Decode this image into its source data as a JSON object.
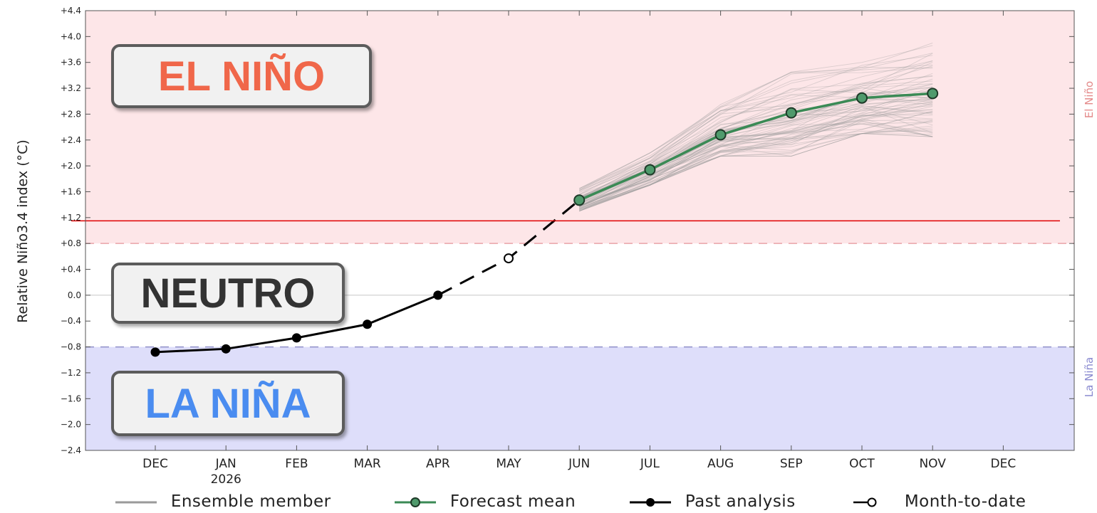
{
  "chart_data": {
    "type": "line",
    "ylabel": "Relative Niño3.4 index (°C)",
    "ylim": [
      -2.4,
      4.4
    ],
    "yticks": [
      "+4.4",
      "+4.0",
      "+3.6",
      "+3.2",
      "+2.8",
      "+2.4",
      "+2.0",
      "+1.6",
      "+1.2",
      "+0.8",
      "+0.4",
      "0.0",
      "−0.4",
      "−0.8",
      "−1.2",
      "−1.6",
      "−2.0",
      "−2.4"
    ],
    "ytick_values": [
      4.4,
      4.0,
      3.6,
      3.2,
      2.8,
      2.4,
      2.0,
      1.6,
      1.2,
      0.8,
      0.4,
      0.0,
      -0.4,
      -0.8,
      -1.2,
      -1.6,
      -2.0,
      -2.4
    ],
    "x_categories": [
      "DEC",
      "JAN",
      "FEB",
      "MAR",
      "APR",
      "MAY",
      "JUN",
      "JUL",
      "AUG",
      "SEP",
      "OCT",
      "NOV",
      "DEC"
    ],
    "x_sublabels": {
      "1": "2026"
    },
    "thresholds": {
      "el_nino": 0.8,
      "la_nina": -0.8,
      "red_line": 1.15
    },
    "region_labels": {
      "el_nino": "El Niño",
      "la_nina": "La Niña"
    },
    "colors": {
      "el_nino_band": "#fde6e8",
      "la_nina_band": "#dedefa",
      "forecast": "#3a8a55",
      "forecast_marker": "#4f9a6c",
      "past": "#000000",
      "ensemble": "#9a9a9a",
      "red_line": "#e00000"
    },
    "series": [
      {
        "name": "Past analysis",
        "x": [
          0,
          1,
          2,
          3,
          4
        ],
        "values": [
          -0.88,
          -0.83,
          -0.66,
          -0.45,
          0.0
        ]
      },
      {
        "name": "Month-to-date",
        "x": [
          5
        ],
        "values": [
          0.57
        ]
      },
      {
        "name": "Forecast mean",
        "x": [
          6,
          7,
          8,
          9,
          10,
          11
        ],
        "values": [
          1.47,
          1.94,
          2.48,
          2.82,
          3.05,
          3.12
        ]
      }
    ],
    "connector": {
      "x": [
        4,
        5,
        6
      ],
      "values": [
        0.0,
        0.57,
        1.47
      ]
    },
    "ensemble_spread": {
      "x": [
        6,
        7,
        8,
        9,
        10,
        11
      ],
      "low": [
        1.3,
        1.7,
        2.15,
        2.15,
        2.5,
        2.45
      ],
      "high": [
        1.65,
        2.2,
        2.95,
        3.45,
        3.6,
        3.9
      ],
      "count": 70
    },
    "legend": [
      "Ensemble member",
      "Forecast mean",
      "Past analysis",
      "Month-to-date"
    ]
  },
  "badges": {
    "el_nino": "EL NIÑO",
    "neutro": "NEUTRO",
    "la_nina": "LA NIÑA"
  }
}
